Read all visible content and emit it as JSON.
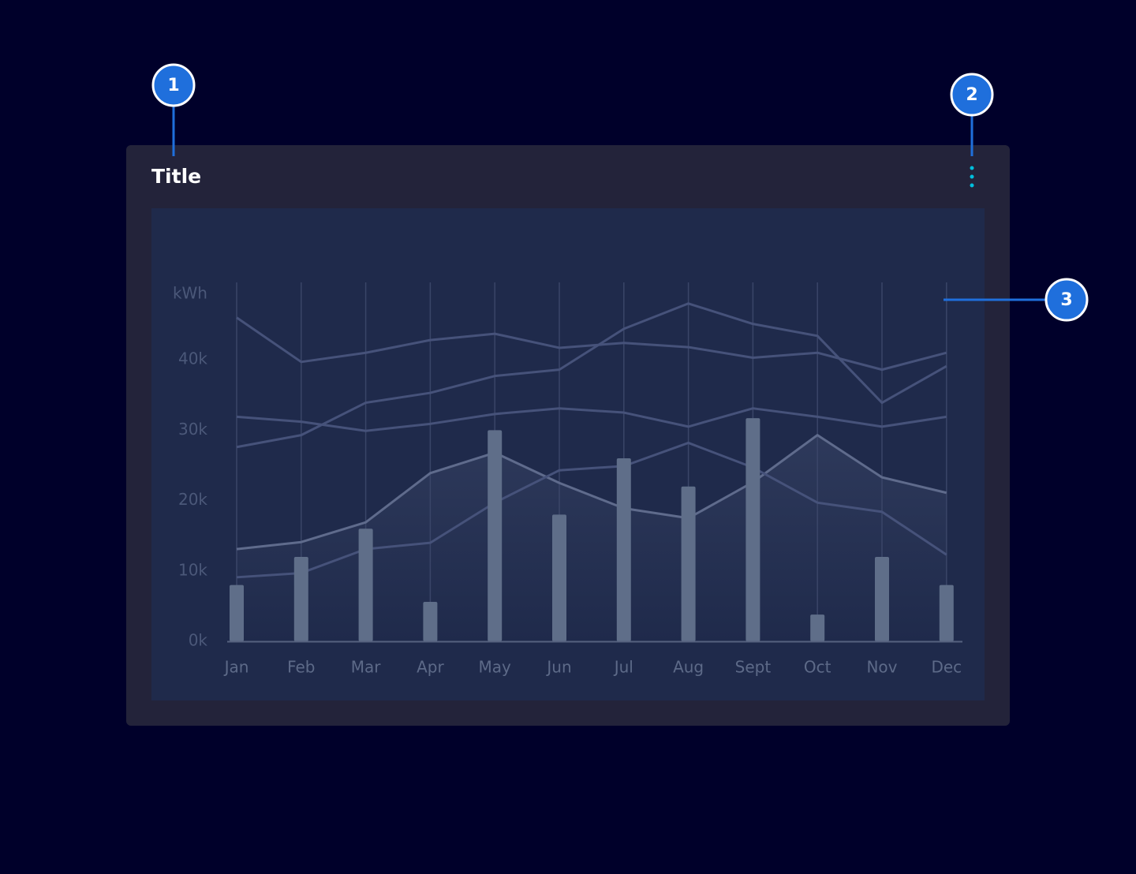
{
  "callouts": [
    "1",
    "2",
    "3"
  ],
  "card": {
    "title": "Title"
  },
  "chart_data": {
    "type": "bar-line",
    "y_label": "kWh",
    "categories": [
      "Jan",
      "Feb",
      "Mar",
      "Apr",
      "May",
      "Jun",
      "Jul",
      "Aug",
      "Sept",
      "Oct",
      "Nov",
      "Dec"
    ],
    "values": [
      8000,
      12000,
      16000,
      5600,
      30000,
      18000,
      26000,
      22000,
      31700,
      3800,
      12000,
      8000
    ],
    "color": "#5f6e89",
    "series": [
      {
        "color": "#46527a",
        "values": [
          46000,
          39700,
          41000,
          42800,
          43700,
          41700,
          42400,
          41800,
          40300,
          41000,
          38600,
          41000
        ]
      },
      {
        "color": "#46527a",
        "values": [
          27600,
          29300,
          33900,
          35300,
          37700,
          38600,
          44400,
          48000,
          45100,
          43400,
          33900,
          39100
        ]
      },
      {
        "color": "#46527a",
        "values": [
          31900,
          31200,
          29900,
          30900,
          32300,
          33100,
          32500,
          30500,
          33100,
          31900,
          30500,
          31900
        ]
      },
      {
        "color": "#5f6b8c",
        "values": [
          13100,
          14100,
          16900,
          23900,
          26800,
          22500,
          18900,
          17500,
          22600,
          29300,
          23300,
          21100
        ]
      },
      {
        "color": "#46527a",
        "values": [
          9100,
          9700,
          13100,
          14000,
          19700,
          24300,
          24900,
          28200,
          24700,
          19700,
          18400,
          12300
        ]
      }
    ],
    "ylim": [
      0,
      51000
    ],
    "yticks": [
      {
        "value": 0,
        "label": "0k"
      },
      {
        "value": 10000,
        "label": "10k"
      },
      {
        "value": 20000,
        "label": "20k"
      },
      {
        "value": 30000,
        "label": "30k"
      },
      {
        "value": 40000,
        "label": "40k"
      }
    ]
  }
}
